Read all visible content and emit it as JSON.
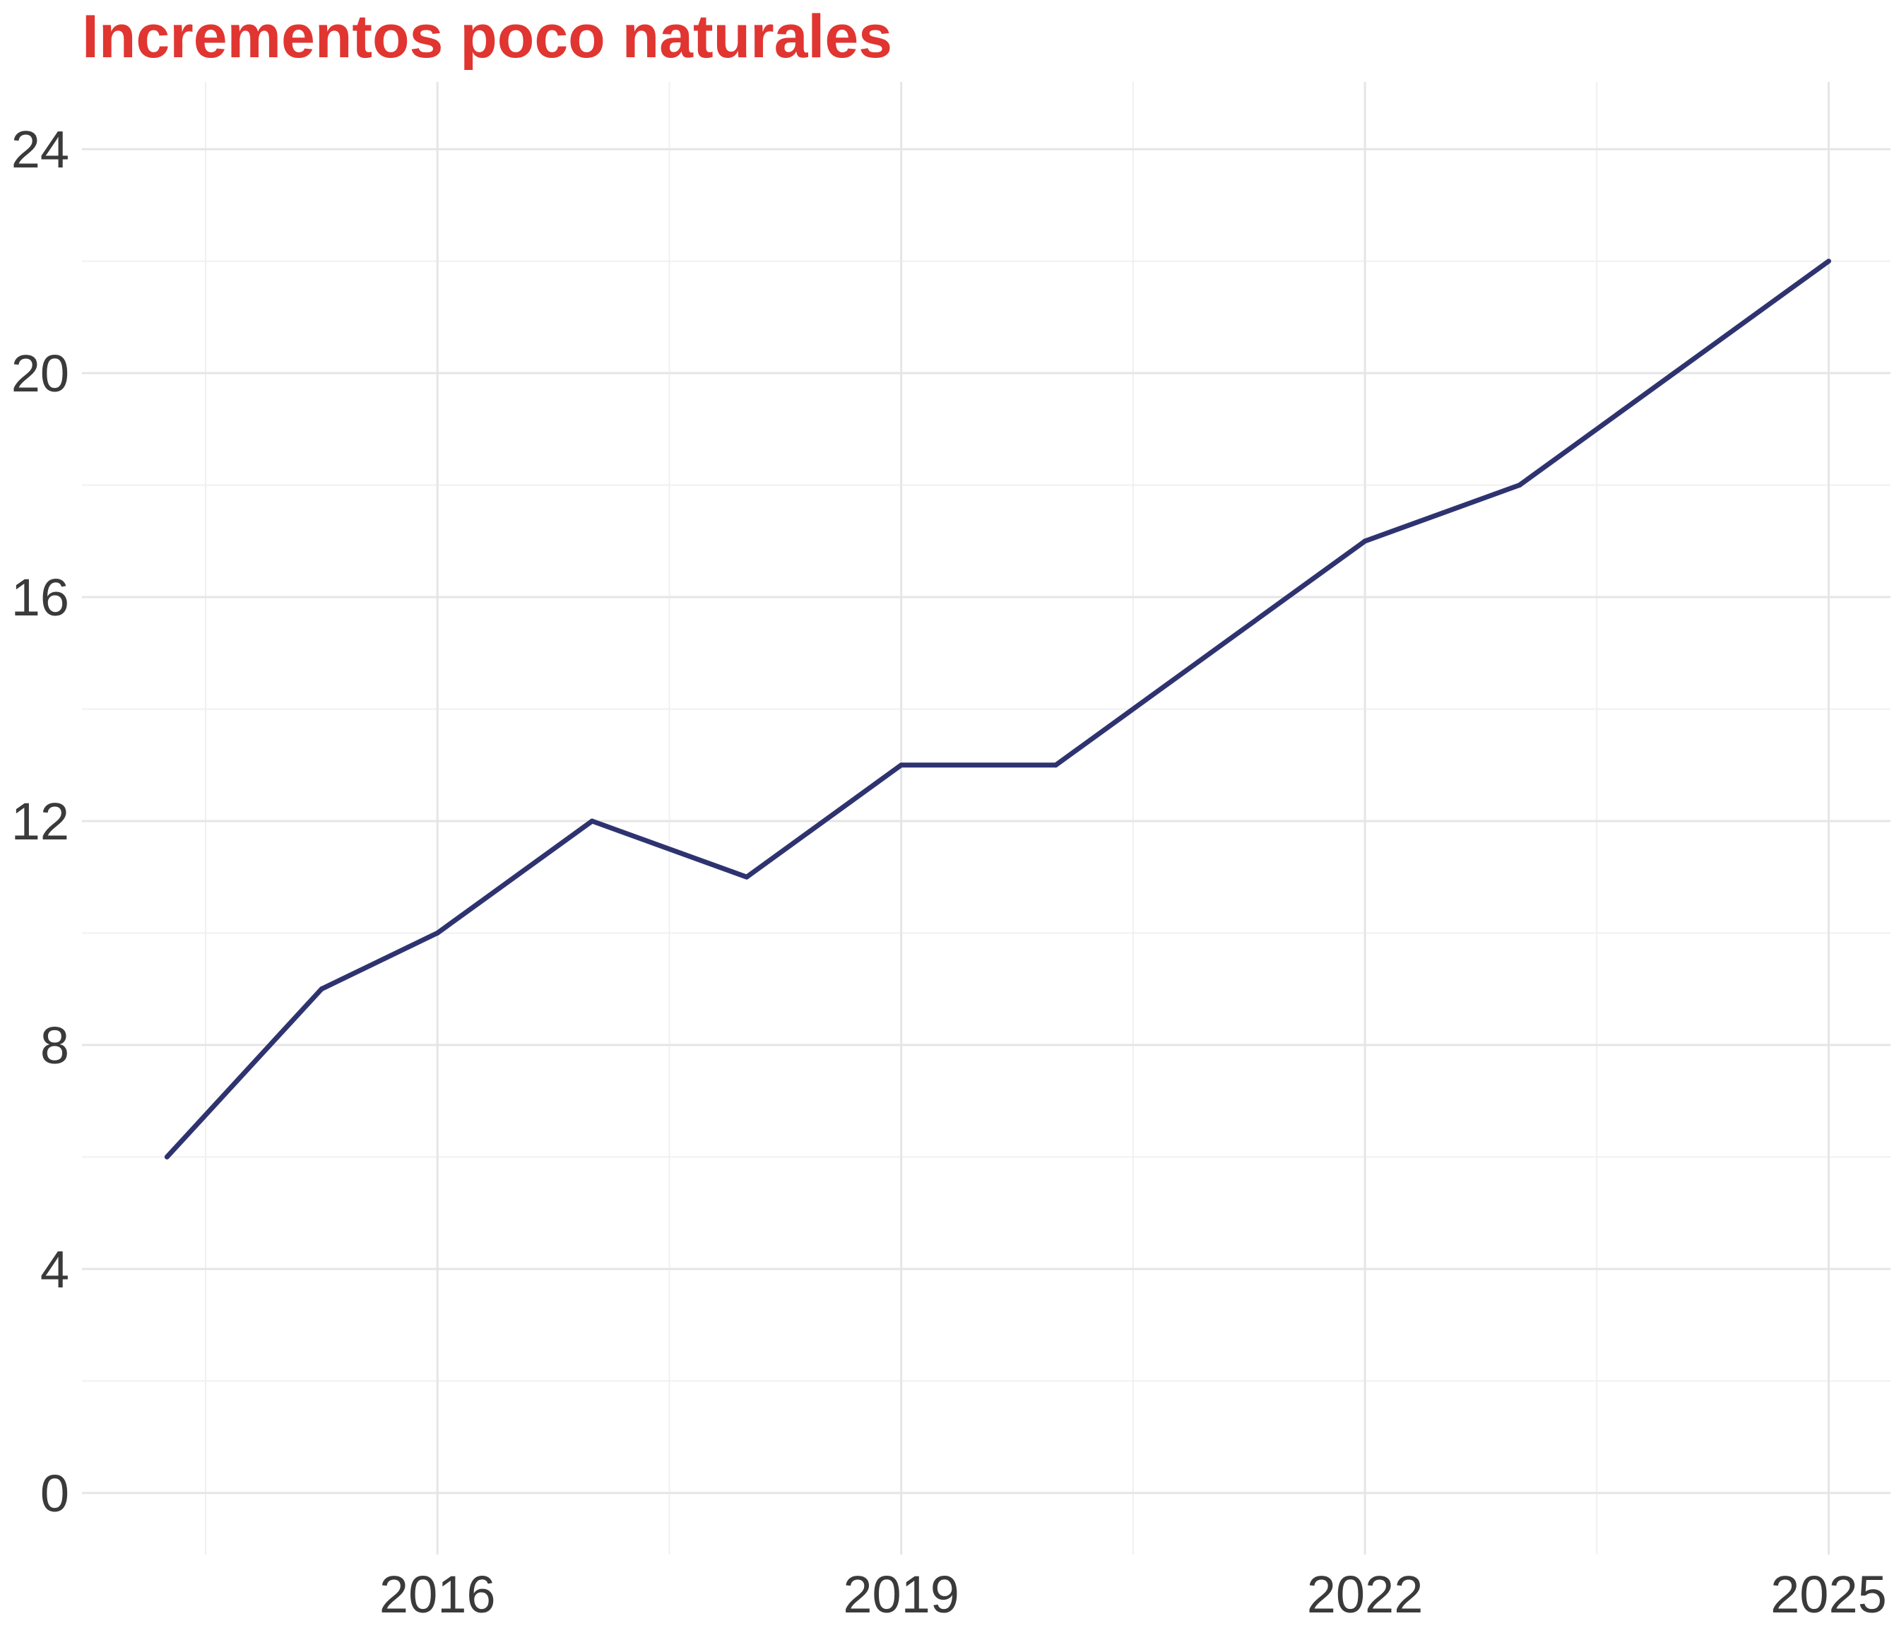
{
  "colors": {
    "title": "#e03531",
    "line": "#2e3370",
    "tick_text": "#3a3a3a",
    "grid": "#e5e5e5"
  },
  "chart_data": {
    "type": "line",
    "title": "Incrementos poco naturales",
    "xlabel": "",
    "ylabel": "",
    "x": [
      2014.25,
      2015.25,
      2016.0,
      2017.0,
      2018.0,
      2019.0,
      2020.0,
      2021.0,
      2022.0,
      2023.0,
      2024.0,
      2025.0
    ],
    "series": [
      {
        "values": [
          6,
          9,
          10,
          12,
          11,
          13,
          13,
          15,
          17,
          18,
          20,
          22
        ]
      }
    ],
    "xlim": [
      2013.7,
      2025.4
    ],
    "ylim": [
      -1.1,
      25.2
    ],
    "x_major_ticks": [
      2016,
      2019,
      2022,
      2025
    ],
    "x_tick_labels": [
      "2016",
      "2019",
      "2022",
      "2025"
    ],
    "x_minor_ticks": [
      2014.5,
      2017.5,
      2020.5,
      2023.5
    ],
    "y_major_ticks": [
      0,
      4,
      8,
      12,
      16,
      20,
      24
    ],
    "y_tick_labels": [
      "0",
      "4",
      "8",
      "12",
      "16",
      "20",
      "24"
    ],
    "y_minor_ticks": [
      2,
      6,
      10,
      14,
      18,
      22
    ],
    "grid": true,
    "legend": "none"
  }
}
